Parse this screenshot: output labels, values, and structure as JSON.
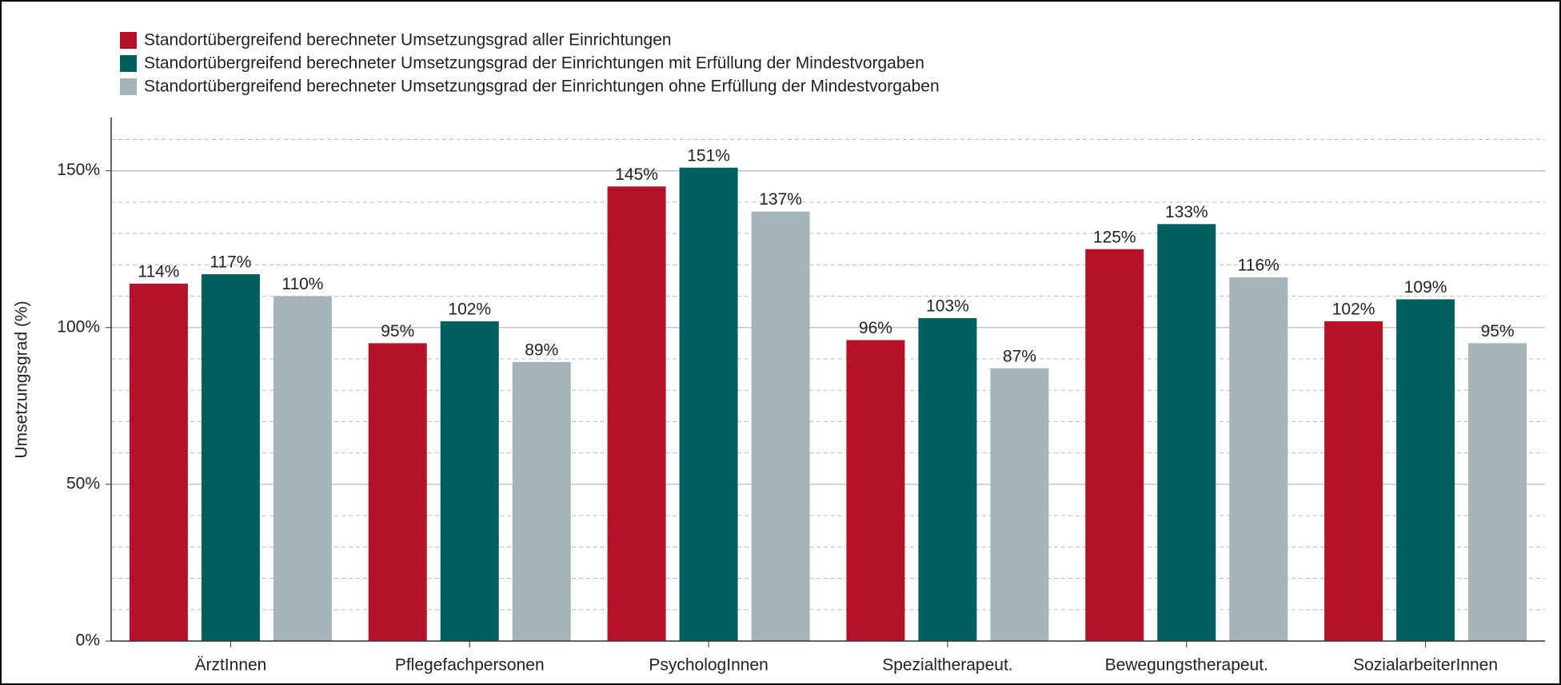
{
  "chart_data": {
    "type": "bar",
    "y_label": "Umsetzungsgrad (%)",
    "categories": [
      "ÄrztInnen",
      "Pflegefachpersonen",
      "PsychologInnen",
      "Spezialtherapeut.",
      "Bewegungstherapeut.",
      "SozialarbeiterInnen"
    ],
    "series": [
      {
        "name": "Standortübergreifend berechneter Umsetzungsgrad aller Einrichtungen",
        "color": "#b5122a",
        "values": [
          114,
          95,
          145,
          96,
          125,
          102
        ],
        "value_labels": [
          "114%",
          "95%",
          "145%",
          "96%",
          "125%",
          "102%"
        ]
      },
      {
        "name": "Standortübergreifend berechneter Umsetzungsgrad der Einrichtungen mit Erfüllung der Mindestvorgaben",
        "color": "#005f5f",
        "values": [
          117,
          102,
          151,
          103,
          133,
          109
        ],
        "value_labels": [
          "117%",
          "102%",
          "151%",
          "103%",
          "133%",
          "109%"
        ]
      },
      {
        "name": "Standortübergreifend berechneter Umsetzungsgrad der Einrichtungen ohne Erfüllung der Mindestvorgaben",
        "color": "#a5b4b8",
        "values": [
          110,
          89,
          137,
          87,
          116,
          95
        ],
        "value_labels": [
          "110%",
          "89%",
          "137%",
          "87%",
          "116%",
          "95%"
        ]
      }
    ],
    "ylim": [
      0,
      167
    ],
    "yticks": [
      {
        "value": 0,
        "label": "0%"
      },
      {
        "value": 50,
        "label": "50%"
      },
      {
        "value": 100,
        "label": "100%"
      },
      {
        "value": 150,
        "label": "150%"
      }
    ],
    "minor_yticks": [
      10,
      20,
      30,
      40,
      60,
      70,
      80,
      90,
      110,
      120,
      130,
      140,
      160
    ],
    "grid": true,
    "legend": "top-left"
  }
}
